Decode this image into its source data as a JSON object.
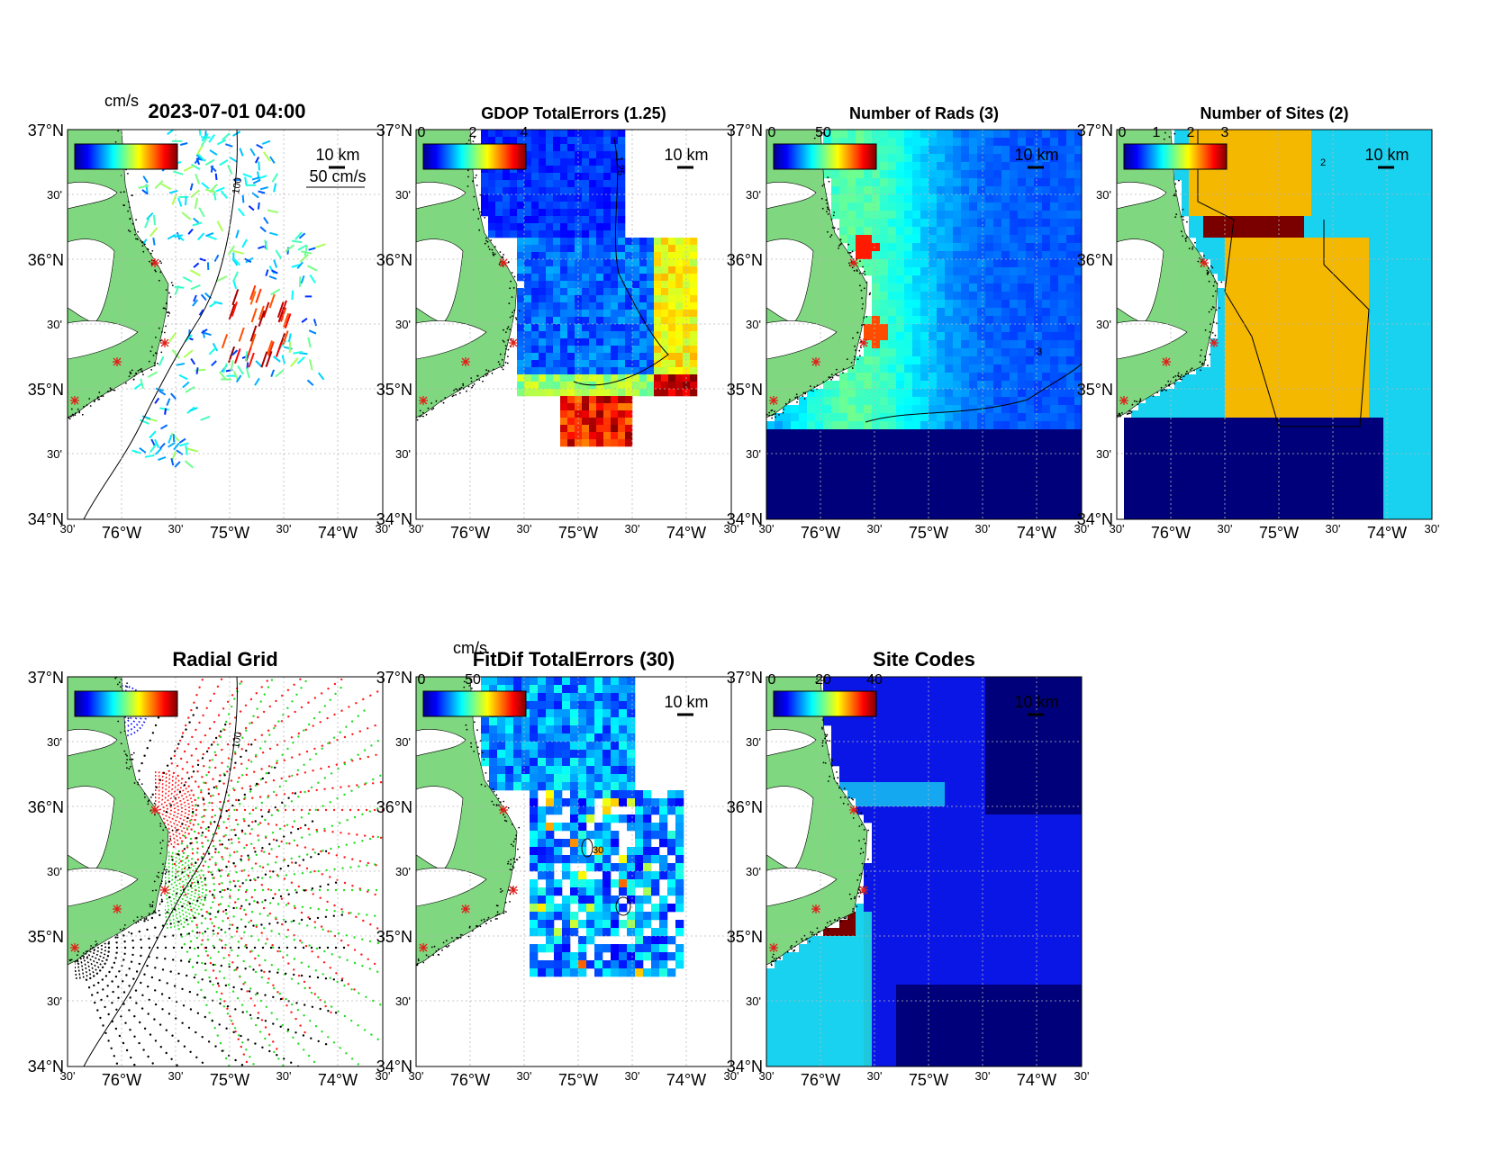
{
  "figure": {
    "timestamp": "2023-07-01 04:00"
  },
  "axis_labels": {
    "lat_major": [
      "37°N",
      "36°N",
      "35°N",
      "34°N"
    ],
    "lat_minor": [
      "30'",
      "30'",
      "30'"
    ],
    "lon": [
      "30'",
      "76°W",
      "30'",
      "75°W",
      "30'",
      "74°W",
      "30'"
    ]
  },
  "scale_bar": "10 km",
  "colors": {
    "land": "#7fd77f",
    "ocean_field": "#0a16e6",
    "deep": "#00007a",
    "site_marker": "#e0201a",
    "dark_red": "#7a0000",
    "orange": "#f5b800",
    "cyan": "#19d2f0"
  },
  "panels": [
    {
      "id": "total-vectors",
      "title": "",
      "cbar_unit": "cm/s",
      "cbar_ticks": [],
      "vector_scale": "50 cm/s",
      "isobath_label": "100",
      "show_lon_labels": true
    },
    {
      "id": "gdop",
      "title": "GDOP TotalErrors (1.25)",
      "cbar_unit": "",
      "cbar_ticks": [
        "0",
        "2",
        "4"
      ],
      "contour_label": "1.25",
      "show_lon_labels": true
    },
    {
      "id": "num-rads",
      "title": "Number of Rads (3)",
      "cbar_unit": "",
      "cbar_ticks": [
        "0",
        "50"
      ],
      "contour_label": "3",
      "show_lon_labels": true
    },
    {
      "id": "num-sites",
      "title": "Number of Sites (2)",
      "cbar_unit": "",
      "cbar_ticks": [
        "0",
        "1",
        "2",
        "3"
      ],
      "contour_label": "2",
      "show_lon_labels": true
    },
    {
      "id": "radial-grid",
      "title": "Radial Grid",
      "cbar_unit": "",
      "cbar_ticks": [],
      "isobath_label": "100",
      "show_lon_labels": true
    },
    {
      "id": "fitdif",
      "title": "FitDif TotalErrors (30)",
      "cbar_unit": "cm/s",
      "cbar_ticks": [
        "0",
        "50"
      ],
      "contour_label": "30",
      "show_lon_labels": true
    },
    {
      "id": "site-codes",
      "title": "Site Codes",
      "cbar_unit": "",
      "cbar_ticks": [
        "0",
        "20",
        "40"
      ],
      "show_lon_labels": true
    }
  ]
}
